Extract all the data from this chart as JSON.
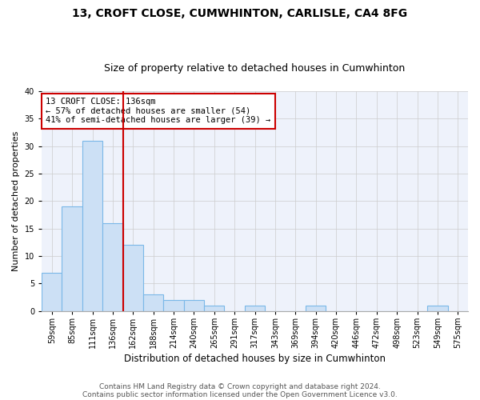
{
  "title": "13, CROFT CLOSE, CUMWHINTON, CARLISLE, CA4 8FG",
  "subtitle": "Size of property relative to detached houses in Cumwhinton",
  "xlabel": "Distribution of detached houses by size in Cumwhinton",
  "ylabel": "Number of detached properties",
  "categories": [
    "59sqm",
    "85sqm",
    "111sqm",
    "136sqm",
    "162sqm",
    "188sqm",
    "214sqm",
    "240sqm",
    "265sqm",
    "291sqm",
    "317sqm",
    "343sqm",
    "369sqm",
    "394sqm",
    "420sqm",
    "446sqm",
    "472sqm",
    "498sqm",
    "523sqm",
    "549sqm",
    "575sqm"
  ],
  "values": [
    7,
    19,
    31,
    16,
    12,
    3,
    2,
    2,
    1,
    0,
    1,
    0,
    0,
    1,
    0,
    0,
    0,
    0,
    0,
    1,
    0
  ],
  "bar_color": "#cce0f5",
  "bar_edge_color": "#7ab8e8",
  "highlight_line_color": "#cc0000",
  "highlight_bar_index": 3,
  "annotation_text": "13 CROFT CLOSE: 136sqm\n← 57% of detached houses are smaller (54)\n41% of semi-detached houses are larger (39) →",
  "annotation_box_edgecolor": "#cc0000",
  "annotation_fontsize": 7.5,
  "ylim": [
    0,
    40
  ],
  "yticks": [
    0,
    5,
    10,
    15,
    20,
    25,
    30,
    35,
    40
  ],
  "footer1": "Contains HM Land Registry data © Crown copyright and database right 2024.",
  "footer2": "Contains public sector information licensed under the Open Government Licence v3.0.",
  "grid_color": "#cccccc",
  "background_color": "#eef2fb",
  "title_fontsize": 10,
  "subtitle_fontsize": 9,
  "ylabel_fontsize": 8,
  "xlabel_fontsize": 8.5,
  "tick_fontsize": 7,
  "footer_fontsize": 6.5,
  "footer_color": "#555555"
}
